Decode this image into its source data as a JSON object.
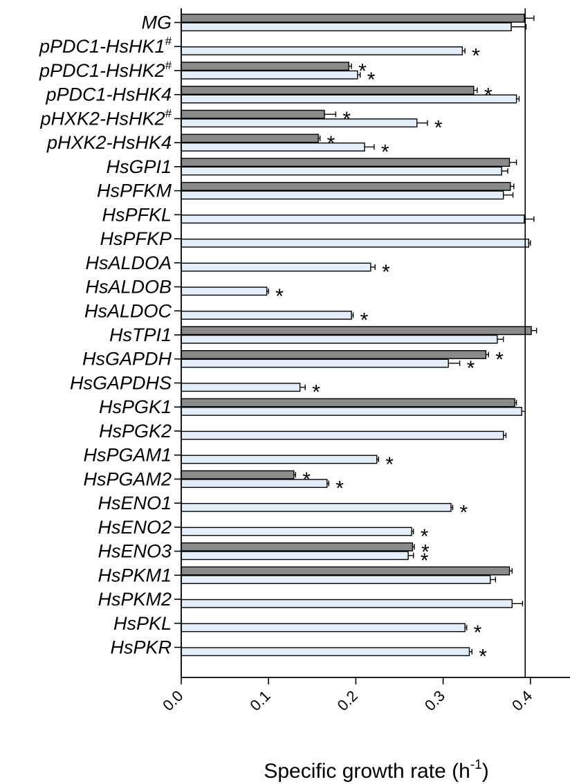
{
  "chart_data": {
    "type": "bar",
    "orientation": "horizontal",
    "xlabel": "Specific growth rate (h",
    "xlabel_sup": "-1",
    "xlabel_close": ")",
    "xlim": [
      0,
      0.44
    ],
    "xticks": [
      "0.0",
      "0.1",
      "0.2",
      "0.3",
      "0.4"
    ],
    "reference_line": 0.394,
    "colors": {
      "dark": "#8a8a8a",
      "light": "#e3eef8",
      "edge": "#000000"
    },
    "categories": [
      {
        "label": "MG",
        "sup": "",
        "dark": 0.393,
        "dark_err": 0.011,
        "dark_sig": "",
        "light": 0.378,
        "light_err": 0.017,
        "light_sig": ""
      },
      {
        "label": "pPDC1-HsHK1",
        "sup": "#",
        "dark": null,
        "dark_err": null,
        "dark_sig": "",
        "light": 0.322,
        "light_err": 0.003,
        "light_sig": "*"
      },
      {
        "label": "pPDC1-HsHK2",
        "sup": "#",
        "dark": 0.192,
        "dark_err": 0.003,
        "dark_sig": "*",
        "light": 0.202,
        "light_err": 0.003,
        "light_sig": "*"
      },
      {
        "label": "pPDC1-HsHK4",
        "sup": "",
        "dark": 0.335,
        "dark_err": 0.004,
        "dark_sig": "*",
        "light": 0.384,
        "light_err": 0.003,
        "light_sig": ""
      },
      {
        "label": "pHXK2-HsHK2",
        "sup": "#",
        "dark": 0.164,
        "dark_err": 0.013,
        "dark_sig": "*",
        "light": 0.27,
        "light_err": 0.012,
        "light_sig": "*"
      },
      {
        "label": "pHXK2-HsHK4",
        "sup": "",
        "dark": 0.157,
        "dark_err": 0.002,
        "dark_sig": "*",
        "light": 0.21,
        "light_err": 0.011,
        "light_sig": "*"
      },
      {
        "label": "HsGPI1",
        "sup": "",
        "dark": 0.376,
        "dark_err": 0.008,
        "dark_sig": "",
        "light": 0.367,
        "light_err": 0.007,
        "light_sig": ""
      },
      {
        "label": "HsPFKM",
        "sup": "",
        "dark": 0.377,
        "dark_err": 0.004,
        "dark_sig": "",
        "light": 0.369,
        "light_err": 0.011,
        "light_sig": ""
      },
      {
        "label": "HsPFKL",
        "sup": "",
        "dark": null,
        "dark_err": null,
        "dark_sig": "",
        "light": 0.393,
        "light_err": 0.011,
        "light_sig": ""
      },
      {
        "label": "HsPFKP",
        "sup": "",
        "dark": null,
        "dark_err": null,
        "dark_sig": "",
        "light": 0.398,
        "light_err": 0.002,
        "light_sig": ""
      },
      {
        "label": "HsALDOA",
        "sup": "",
        "dark": null,
        "dark_err": null,
        "dark_sig": "",
        "light": 0.217,
        "light_err": 0.005,
        "light_sig": "*"
      },
      {
        "label": "HsALDOB",
        "sup": "",
        "dark": null,
        "dark_err": null,
        "dark_sig": "",
        "light": 0.098,
        "light_err": 0.002,
        "light_sig": "*"
      },
      {
        "label": "HsALDOC",
        "sup": "",
        "dark": null,
        "dark_err": null,
        "dark_sig": "",
        "light": 0.195,
        "light_err": 0.002,
        "light_sig": "*"
      },
      {
        "label": "HsTPI1",
        "sup": "",
        "dark": 0.401,
        "dark_err": 0.006,
        "dark_sig": "",
        "light": 0.362,
        "light_err": 0.007,
        "light_sig": ""
      },
      {
        "label": "HsGAPDH",
        "sup": "",
        "dark": 0.349,
        "dark_err": 0.003,
        "dark_sig": "*",
        "light": 0.306,
        "light_err": 0.013,
        "light_sig": "*"
      },
      {
        "label": "HsGAPDHS",
        "sup": "",
        "dark": null,
        "dark_err": null,
        "dark_sig": "",
        "light": 0.136,
        "light_err": 0.006,
        "light_sig": "*"
      },
      {
        "label": "HsPGK1",
        "sup": "",
        "dark": 0.382,
        "dark_err": 0.002,
        "dark_sig": "",
        "light": 0.39,
        "light_err": 0.004,
        "light_sig": ""
      },
      {
        "label": "HsPGK2",
        "sup": "",
        "dark": null,
        "dark_err": null,
        "dark_sig": "",
        "light": 0.369,
        "light_err": 0.003,
        "light_sig": ""
      },
      {
        "label": "HsPGAM1",
        "sup": "",
        "dark": null,
        "dark_err": null,
        "dark_sig": "",
        "light": 0.224,
        "light_err": 0.002,
        "light_sig": "*"
      },
      {
        "label": "HsPGAM2",
        "sup": "",
        "dark": 0.129,
        "dark_err": 0.002,
        "dark_sig": "*",
        "light": 0.167,
        "light_err": 0.002,
        "light_sig": "*"
      },
      {
        "label": "HsENO1",
        "sup": "",
        "dark": null,
        "dark_err": null,
        "dark_sig": "",
        "light": 0.309,
        "light_err": 0.002,
        "light_sig": "*"
      },
      {
        "label": "HsENO2",
        "sup": "",
        "dark": null,
        "dark_err": null,
        "dark_sig": "",
        "light": 0.264,
        "light_err": 0.002,
        "light_sig": "*"
      },
      {
        "label": "HsENO3",
        "sup": "",
        "dark": 0.265,
        "dark_err": 0.002,
        "dark_sig": "*",
        "light": 0.26,
        "light_err": 0.006,
        "light_sig": "*"
      },
      {
        "label": "HsPKM1",
        "sup": "",
        "dark": 0.376,
        "dark_err": 0.003,
        "dark_sig": "",
        "light": 0.354,
        "light_err": 0.006,
        "light_sig": ""
      },
      {
        "label": "HsPKM2",
        "sup": "",
        "dark": null,
        "dark_err": null,
        "dark_sig": "",
        "light": 0.379,
        "light_err": 0.012,
        "light_sig": ""
      },
      {
        "label": "HsPKL",
        "sup": "",
        "dark": null,
        "dark_err": null,
        "dark_sig": "",
        "light": 0.325,
        "light_err": 0.002,
        "light_sig": "*"
      },
      {
        "label": "HsPKR",
        "sup": "",
        "dark": null,
        "dark_err": null,
        "dark_sig": "",
        "light": 0.33,
        "light_err": 0.003,
        "light_sig": "*"
      }
    ]
  }
}
